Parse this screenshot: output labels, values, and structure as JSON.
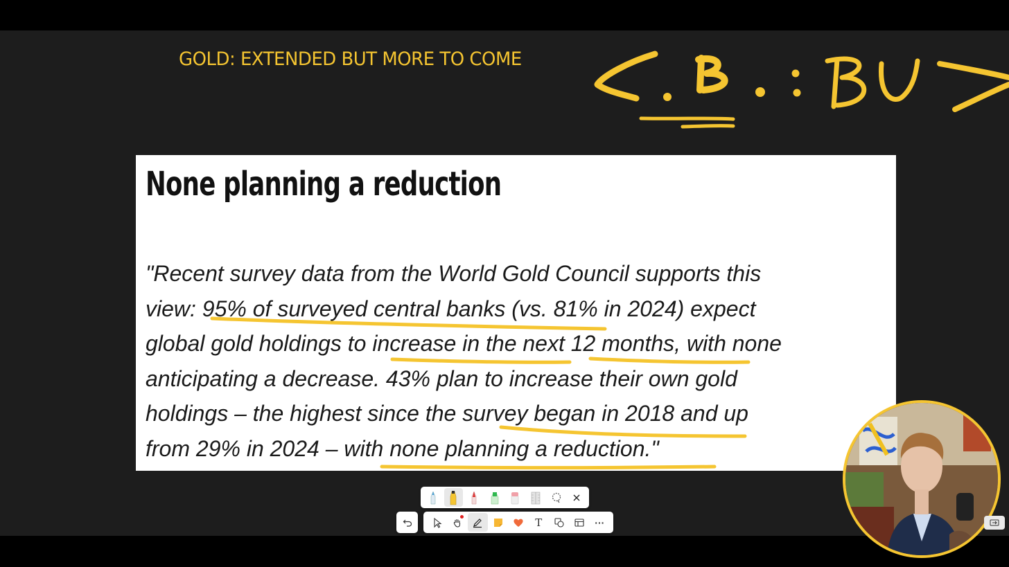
{
  "slide": {
    "title": "GOLD: EXTENDED BUT MORE TO COME",
    "accent_color": "#f5c531",
    "background_color": "#1d1d1d"
  },
  "card": {
    "heading": "None planning a reduction",
    "quote_lines": [
      "\"Recent survey data from the World Gold Council supports this",
      "view: 95% of surveyed central banks (vs. 81% in 2024) expect",
      "global gold holdings to increase in the next 12 months, with none",
      "anticipating a decrease. 43% plan to increase their own gold",
      "holdings – the highest since the survey began in 2018 and up",
      "from 29% in 2024 – with none planning a reduction.\""
    ]
  },
  "annotation": {
    "handwritten_text": "<C.B.: BUY>",
    "ink_color": "#f5c531"
  },
  "pen_tray": {
    "tools": [
      {
        "name": "blue-pen",
        "color": "#4a9fd8"
      },
      {
        "name": "yellow-highlighter",
        "color": "#f5c531",
        "active": true
      },
      {
        "name": "red-pen",
        "color": "#d92c2c"
      },
      {
        "name": "green-pen",
        "color": "#2fb84f"
      },
      {
        "name": "eraser",
        "color": "#f0a0a8"
      },
      {
        "name": "ruler",
        "color": "#cfcfcf"
      },
      {
        "name": "lasso",
        "color": "#555555"
      }
    ],
    "close_icon": "close-icon"
  },
  "main_toolbar": {
    "tools": [
      "select-icon",
      "hand-icon",
      "pen-icon",
      "sticky-note-icon",
      "reaction-heart-icon",
      "text-icon",
      "shapes-icon",
      "table-icon",
      "more-icon"
    ],
    "more_label": "···",
    "text_label": "T",
    "active_tool": "pen-icon"
  },
  "undo": {
    "icon": "undo-icon"
  },
  "webcam": {
    "description_icon": "presenter-video"
  }
}
